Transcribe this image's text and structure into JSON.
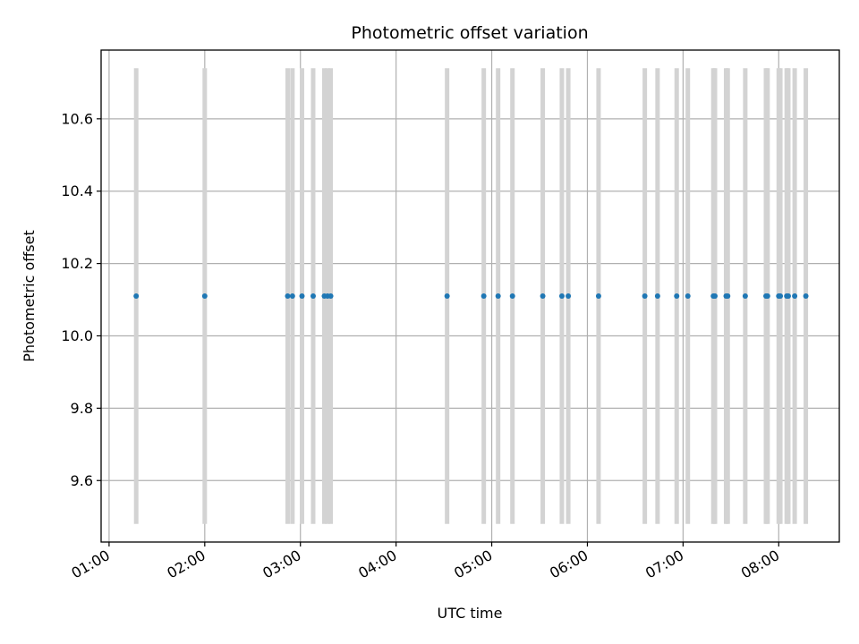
{
  "chart_data": {
    "type": "scatter",
    "title": "Photometric offset variation",
    "xlabel": "UTC time",
    "ylabel": "Photometric offset",
    "x_tick_labels": [
      "01:00",
      "02:00",
      "03:00",
      "04:00",
      "05:00",
      "06:00",
      "07:00",
      "08:00"
    ],
    "y_tick_labels": [
      "9.6",
      "9.8",
      "10.0",
      "10.2",
      "10.4",
      "10.6"
    ],
    "y_ticks": [
      9.6,
      9.8,
      10.0,
      10.2,
      10.4,
      10.6
    ],
    "xlim": [
      "00:55",
      "08:38"
    ],
    "ylim": [
      9.43,
      10.79
    ],
    "grid": true,
    "point_color": "#1f77b4",
    "error_bar_color": "#d3d3d3",
    "series": [
      {
        "x": [
          "01:17",
          "02:00",
          "02:52",
          "02:55",
          "03:01",
          "03:08",
          "03:15",
          "03:17",
          "03:19",
          "04:32",
          "04:55",
          "05:04",
          "05:13",
          "05:32",
          "05:44",
          "05:48",
          "06:07",
          "06:36",
          "06:44",
          "06:56",
          "07:03",
          "07:19",
          "07:20",
          "07:27",
          "07:28",
          "07:39",
          "07:52",
          "07:53",
          "08:00",
          "08:01",
          "08:05",
          "08:06",
          "08:10",
          "08:17"
        ],
        "y": [
          10.11,
          10.11,
          10.11,
          10.11,
          10.11,
          10.11,
          10.11,
          10.11,
          10.11,
          10.11,
          10.11,
          10.11,
          10.11,
          10.11,
          10.11,
          10.11,
          10.11,
          10.11,
          10.11,
          10.11,
          10.11,
          10.11,
          10.11,
          10.11,
          10.11,
          10.11,
          10.11,
          10.11,
          10.11,
          10.11,
          10.11,
          10.11,
          10.11,
          10.11
        ],
        "y_error": [
          0.63,
          0.63,
          0.63,
          0.63,
          0.63,
          0.63,
          0.63,
          0.63,
          0.63,
          0.63,
          0.63,
          0.63,
          0.63,
          0.63,
          0.63,
          0.63,
          0.63,
          0.63,
          0.63,
          0.63,
          0.63,
          0.63,
          0.63,
          0.63,
          0.63,
          0.63,
          0.63,
          0.63,
          0.63,
          0.63,
          0.63,
          0.63,
          0.63,
          0.63
        ]
      }
    ]
  }
}
